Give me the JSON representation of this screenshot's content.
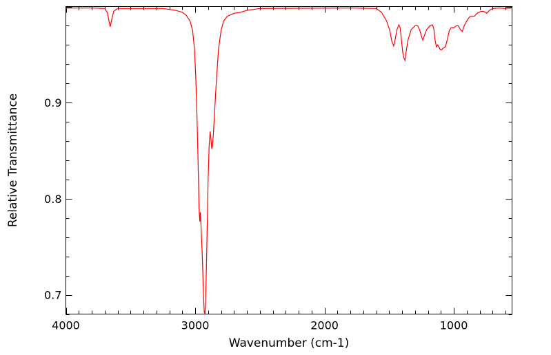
{
  "chart_data": {
    "type": "line",
    "xlabel": "Wavenumber (cm-1)",
    "ylabel": "Relative Transmittance",
    "xlim": [
      4000,
      550
    ],
    "ylim": [
      0.68,
      1.0
    ],
    "x_reversed": true,
    "x_ticks": [
      4000,
      3000,
      2000,
      1000
    ],
    "x_tick_labels": [
      "4000",
      "3000",
      "2000",
      "1000"
    ],
    "y_ticks": [
      0.7,
      0.8,
      0.9
    ],
    "y_tick_labels": [
      "0.7",
      "0.8",
      "0.9"
    ],
    "grid": false,
    "series": [
      {
        "color": "#ff0000",
        "points": [
          [
            4000,
            0.9985
          ],
          [
            3800,
            0.9985
          ],
          [
            3700,
            0.998
          ],
          [
            3680,
            0.994
          ],
          [
            3665,
            0.984
          ],
          [
            3657,
            0.979
          ],
          [
            3648,
            0.985
          ],
          [
            3630,
            0.995
          ],
          [
            3600,
            0.998
          ],
          [
            3400,
            0.998
          ],
          [
            3250,
            0.998
          ],
          [
            3150,
            0.996
          ],
          [
            3100,
            0.994
          ],
          [
            3070,
            0.991
          ],
          [
            3040,
            0.985
          ],
          [
            3020,
            0.975
          ],
          [
            3005,
            0.955
          ],
          [
            2995,
            0.925
          ],
          [
            2985,
            0.88
          ],
          [
            2978,
            0.84
          ],
          [
            2970,
            0.79
          ],
          [
            2964,
            0.776
          ],
          [
            2960,
            0.786
          ],
          [
            2956,
            0.776
          ],
          [
            2945,
            0.74
          ],
          [
            2936,
            0.7
          ],
          [
            2930,
            0.682
          ],
          [
            2924,
            0.68
          ],
          [
            2918,
            0.7
          ],
          [
            2910,
            0.75
          ],
          [
            2900,
            0.82
          ],
          [
            2892,
            0.855
          ],
          [
            2884,
            0.87
          ],
          [
            2878,
            0.862
          ],
          [
            2872,
            0.852
          ],
          [
            2866,
            0.855
          ],
          [
            2858,
            0.87
          ],
          [
            2848,
            0.895
          ],
          [
            2835,
            0.925
          ],
          [
            2820,
            0.955
          ],
          [
            2800,
            0.975
          ],
          [
            2780,
            0.985
          ],
          [
            2750,
            0.99
          ],
          [
            2700,
            0.993
          ],
          [
            2650,
            0.994
          ],
          [
            2600,
            0.996
          ],
          [
            2500,
            0.998
          ],
          [
            1800,
            0.9985
          ],
          [
            1600,
            0.998
          ],
          [
            1560,
            0.994
          ],
          [
            1520,
            0.985
          ],
          [
            1495,
            0.975
          ],
          [
            1480,
            0.964
          ],
          [
            1465,
            0.959
          ],
          [
            1455,
            0.965
          ],
          [
            1440,
            0.976
          ],
          [
            1425,
            0.981
          ],
          [
            1415,
            0.978
          ],
          [
            1405,
            0.965
          ],
          [
            1395,
            0.952
          ],
          [
            1385,
            0.946
          ],
          [
            1377,
            0.944
          ],
          [
            1370,
            0.952
          ],
          [
            1355,
            0.965
          ],
          [
            1330,
            0.976
          ],
          [
            1300,
            0.98
          ],
          [
            1280,
            0.98
          ],
          [
            1265,
            0.976
          ],
          [
            1250,
            0.969
          ],
          [
            1240,
            0.965
          ],
          [
            1230,
            0.969
          ],
          [
            1210,
            0.976
          ],
          [
            1185,
            0.98
          ],
          [
            1165,
            0.981
          ],
          [
            1155,
            0.977
          ],
          [
            1145,
            0.965
          ],
          [
            1135,
            0.958
          ],
          [
            1125,
            0.96
          ],
          [
            1115,
            0.958
          ],
          [
            1105,
            0.955
          ],
          [
            1095,
            0.955
          ],
          [
            1080,
            0.957
          ],
          [
            1065,
            0.958
          ],
          [
            1050,
            0.966
          ],
          [
            1035,
            0.975
          ],
          [
            1020,
            0.978
          ],
          [
            1000,
            0.978
          ],
          [
            980,
            0.98
          ],
          [
            965,
            0.98
          ],
          [
            950,
            0.976
          ],
          [
            935,
            0.974
          ],
          [
            920,
            0.98
          ],
          [
            900,
            0.985
          ],
          [
            880,
            0.989
          ],
          [
            860,
            0.99
          ],
          [
            840,
            0.99
          ],
          [
            820,
            0.993
          ],
          [
            790,
            0.995
          ],
          [
            770,
            0.995
          ],
          [
            745,
            0.993
          ],
          [
            725,
            0.996
          ],
          [
            700,
            0.998
          ],
          [
            650,
            0.9985
          ],
          [
            600,
            0.998
          ],
          [
            550,
            0.9985
          ]
        ]
      }
    ]
  }
}
